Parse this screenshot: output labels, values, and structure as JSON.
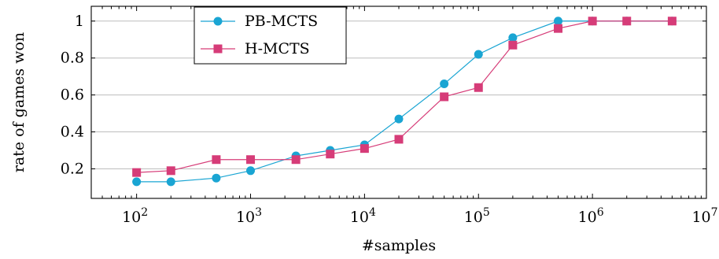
{
  "chart_data": {
    "type": "line",
    "xscale": "log",
    "xlabel": "#samples",
    "ylabel": "rate of games won",
    "xlim": [
      40,
      10000000
    ],
    "ylim": [
      0.04,
      1.08
    ],
    "grid": "horizontal",
    "legend_position": "top-left",
    "x_ticks": [
      {
        "base": "10",
        "exp": "2"
      },
      {
        "base": "10",
        "exp": "3"
      },
      {
        "base": "10",
        "exp": "4"
      },
      {
        "base": "10",
        "exp": "5"
      },
      {
        "base": "10",
        "exp": "6"
      },
      {
        "base": "10",
        "exp": "7"
      }
    ],
    "y_ticks": [
      "0.2",
      "0.4",
      "0.6",
      "0.8",
      "1"
    ],
    "series": [
      {
        "name": "PB-MCTS",
        "color": "#1aa5d3",
        "marker": "circle",
        "x": [
          100,
          200,
          500,
          1000,
          2500,
          5000,
          10000,
          20000,
          50000,
          100000,
          200000,
          500000,
          1000000,
          2000000,
          5000000
        ],
        "y": [
          0.13,
          0.13,
          0.15,
          0.19,
          0.27,
          0.3,
          0.33,
          0.47,
          0.66,
          0.82,
          0.91,
          1.0,
          1.0,
          1.0,
          1.0
        ]
      },
      {
        "name": "H-MCTS",
        "color": "#d63c78",
        "marker": "square",
        "x": [
          100,
          200,
          500,
          1000,
          2500,
          5000,
          10000,
          20000,
          50000,
          100000,
          200000,
          500000,
          1000000,
          2000000,
          5000000
        ],
        "y": [
          0.18,
          0.19,
          0.25,
          0.25,
          0.25,
          0.28,
          0.31,
          0.36,
          0.59,
          0.64,
          0.87,
          0.96,
          1.0,
          1.0,
          1.0
        ]
      }
    ]
  }
}
